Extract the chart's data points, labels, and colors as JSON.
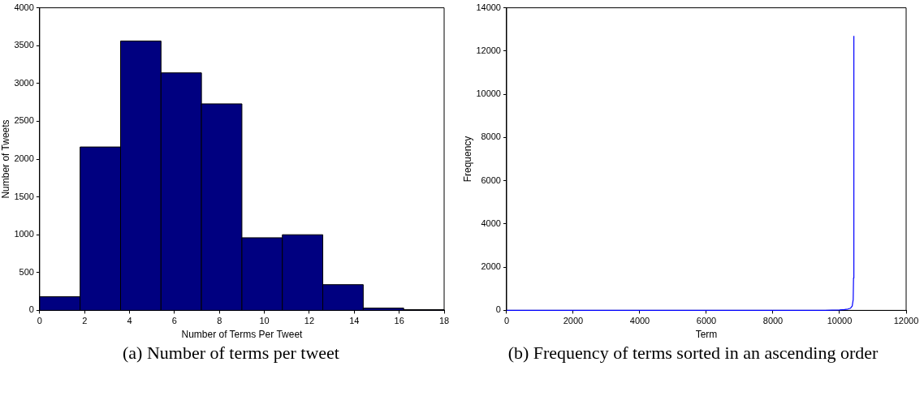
{
  "chart_data": [
    {
      "type": "histogram",
      "xlabel": "Number of Terms Per Tweet",
      "ylabel": "Number of Tweets",
      "color": "#000080",
      "bins": [
        0,
        1.8,
        3.6,
        5.4,
        7.2,
        9,
        10.8,
        12.6,
        14.4,
        16.2,
        18
      ],
      "values": [
        180,
        2160,
        3560,
        3140,
        2730,
        960,
        1000,
        340,
        30,
        10
      ],
      "xlim": [
        0,
        18
      ],
      "xticks": [
        0,
        2,
        4,
        6,
        8,
        10,
        12,
        14,
        16,
        18
      ],
      "ylim": [
        0,
        4000
      ],
      "yticks": [
        0,
        500,
        1000,
        1500,
        2000,
        2500,
        3000,
        3500,
        4000
      ],
      "annotations": [
        "(a) Number of terms per tweet"
      ]
    },
    {
      "type": "line",
      "xlabel": "Term",
      "ylabel": "Frequency",
      "color": "#0000ff",
      "marker": "none",
      "x": [
        1,
        2000,
        4000,
        6000,
        8000,
        9000,
        9500,
        10000,
        10150,
        10250,
        10330,
        10380,
        10410,
        10420,
        10430
      ],
      "values": [
        0,
        0,
        0,
        0,
        0,
        0,
        0,
        20,
        40,
        60,
        100,
        200,
        500,
        1500,
        12700
      ],
      "xlim": [
        0,
        12000
      ],
      "xticks": [
        0,
        2000,
        4000,
        6000,
        8000,
        10000,
        12000
      ],
      "ylim": [
        0,
        14000
      ],
      "yticks": [
        0,
        2000,
        4000,
        6000,
        8000,
        10000,
        12000,
        14000
      ],
      "annotations": [
        "(b) Frequency of terms sorted in an ascending order"
      ]
    }
  ]
}
